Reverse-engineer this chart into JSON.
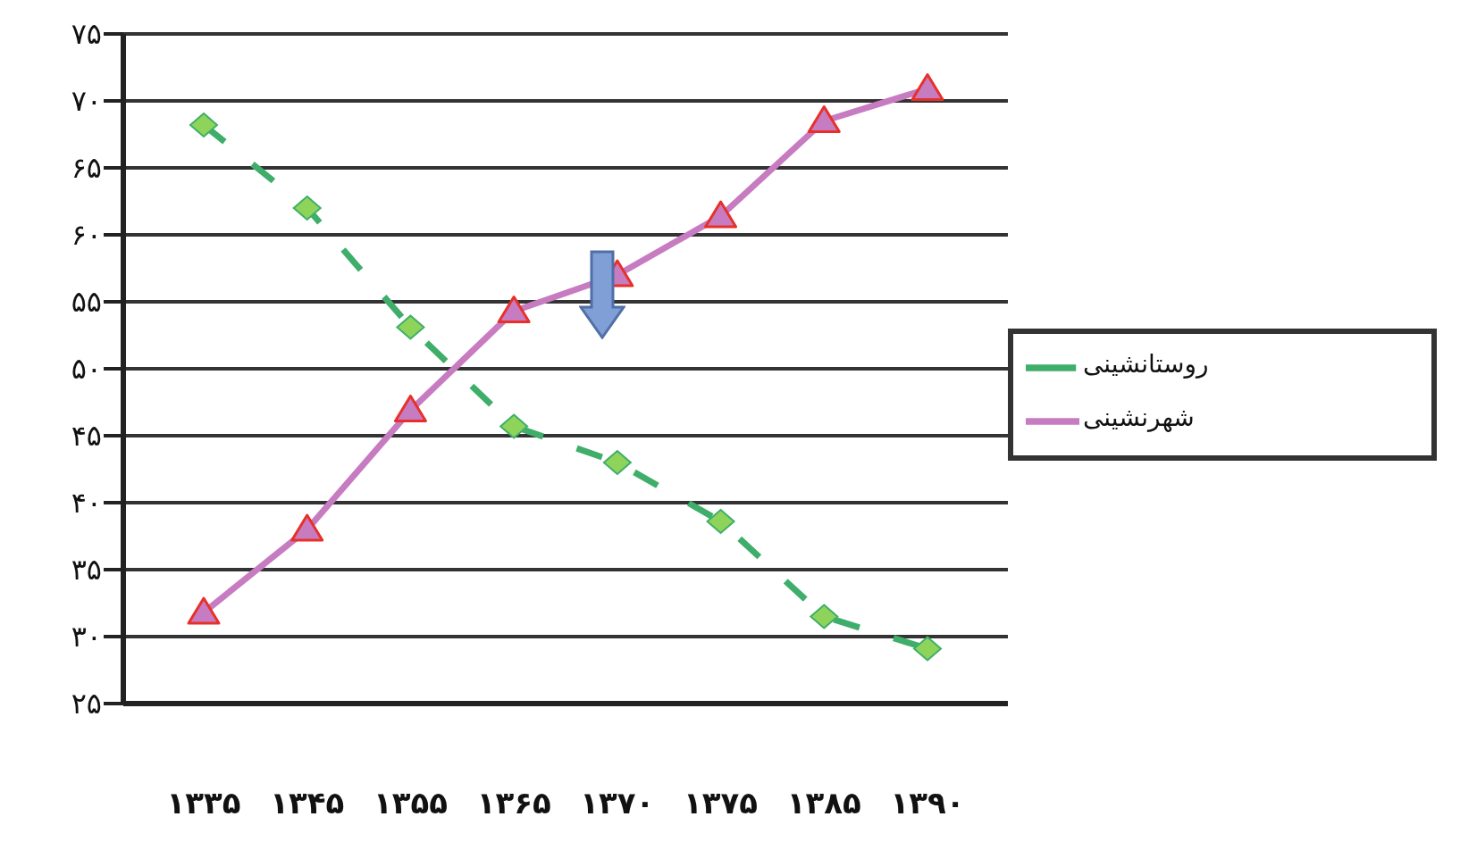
{
  "chart_data": {
    "type": "line",
    "categories": [
      "۱۳۳۵",
      "۱۳۴۵",
      "۱۳۵۵",
      "۱۳۶۵",
      "۱۳۷۰",
      "۱۳۷۵",
      "۱۳۸۵",
      "۱۳۹۰"
    ],
    "series": [
      {
        "name": "روستانشینی",
        "color": "#3fae6a",
        "values": [
          68.2,
          62.0,
          53.1,
          45.7,
          43.0,
          38.6,
          31.5,
          29.1
        ],
        "marker": "diamond",
        "line_style": "dashed"
      },
      {
        "name": "شهرنشینی",
        "color": "#c77bc0",
        "values": [
          31.8,
          38.0,
          46.9,
          54.3,
          57.0,
          61.4,
          68.5,
          70.9
        ],
        "marker": "triangle",
        "line_style": "solid"
      }
    ],
    "ylim": [
      25,
      75
    ],
    "yticks": [
      {
        "value": 25,
        "label": "۲۵"
      },
      {
        "value": 30,
        "label": "۳۰"
      },
      {
        "value": 35,
        "label": "۳۵"
      },
      {
        "value": 40,
        "label": "۴۰"
      },
      {
        "value": 45,
        "label": "۴۵"
      },
      {
        "value": 50,
        "label": "۵۰"
      },
      {
        "value": 55,
        "label": "۵۵"
      },
      {
        "value": 60,
        "label": "۶۰"
      },
      {
        "value": 65,
        "label": "۶۵"
      },
      {
        "value": 70,
        "label": "۷۰"
      },
      {
        "value": 75,
        "label": "۷۵"
      }
    ],
    "grid": "y",
    "legend": "right"
  }
}
